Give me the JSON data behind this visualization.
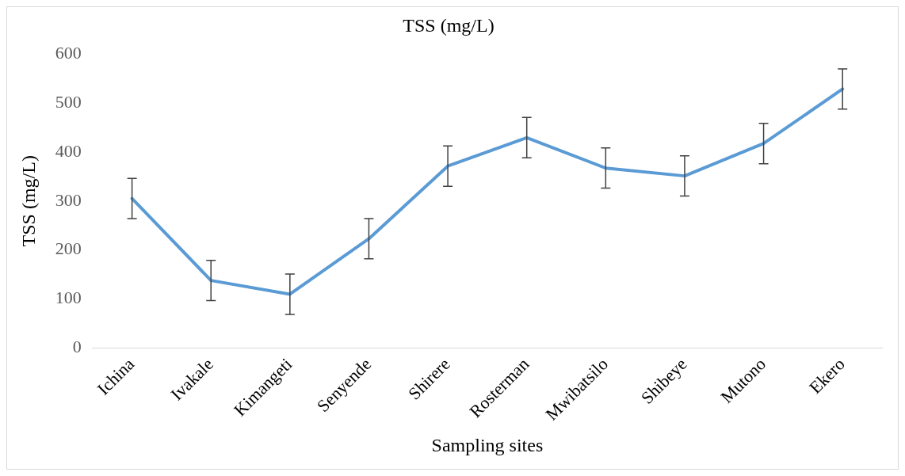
{
  "chart_data": {
    "type": "line",
    "title": "TSS (mg/L)",
    "xlabel": "Sampling sites",
    "ylabel": "TSS (mg/L)",
    "categories": [
      "Ichina",
      "Ivakale",
      "Kimangeti",
      "Senyende",
      "Shirere",
      "Rosterman",
      "Mwibatsilo",
      "Shibeye",
      "Mutono",
      "Ekero"
    ],
    "values": [
      305,
      138,
      110,
      223,
      371,
      429,
      367,
      351,
      417,
      528
    ],
    "errors": [
      41,
      41,
      41,
      41,
      41,
      41,
      41,
      41,
      41,
      41
    ],
    "color": "#5b9bd5",
    "marker": "none",
    "line_style": "solid",
    "ylim": [
      0,
      600
    ],
    "yticks": [
      0,
      100,
      200,
      300,
      400,
      500,
      600
    ],
    "grid": false,
    "legend": false
  }
}
